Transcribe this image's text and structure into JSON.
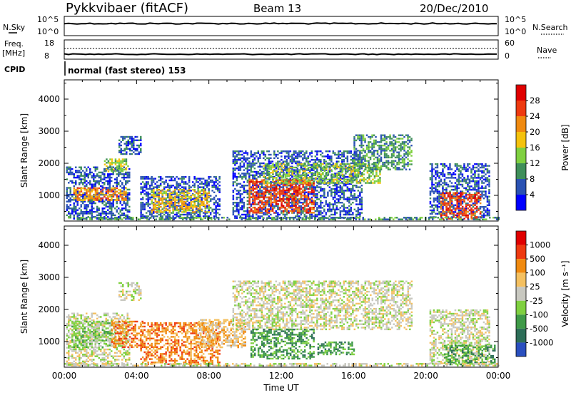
{
  "header": {
    "title": "Pykkvibaer (fitACF)",
    "beam": "Beam 13",
    "date": "20/Dec/2010"
  },
  "strips": {
    "nsky_label": "N.Sky",
    "nsky_ticks": [
      "10^5",
      "10^0"
    ],
    "nsearch_label": "N.Search",
    "nsearch_ticks": [
      "10^5",
      "10^0"
    ],
    "freq_label_1": "Freq.",
    "freq_label_2": "[MHz]",
    "freq_ticks": [
      "18",
      "8"
    ],
    "nave_label": "Nave",
    "nave_ticks": [
      "60",
      "0"
    ],
    "cpid_label": "CPID",
    "cpid_text": "normal (fast stereo) 153"
  },
  "chart_data": [
    {
      "type": "heatmap",
      "name": "power-panel",
      "ylabel": "Slant Range [km]",
      "xlabel": "",
      "x_ticks": [
        "00:00",
        "04:00",
        "08:00",
        "12:00",
        "16:00",
        "20:00",
        "00:00"
      ],
      "y_ticks": [
        1000,
        2000,
        3000,
        4000
      ],
      "ylim": [
        200,
        4600
      ],
      "xlim_hours": [
        0,
        24
      ],
      "colorbar": {
        "label": "Power [dB]",
        "ticks": [
          "28",
          "24",
          "20",
          "16",
          "12",
          "8",
          "4"
        ],
        "colors": [
          "#0000ff",
          "#2a52b3",
          "#3f8f5a",
          "#7fd040",
          "#f4c20d",
          "#f08a10",
          "#ee3a10",
          "#e00000"
        ]
      },
      "regions": [
        {
          "t0": 0.1,
          "t1": 3.6,
          "r0": 300,
          "r1": 1900,
          "c": 1
        },
        {
          "t0": 0.5,
          "t1": 3.4,
          "r0": 850,
          "r1": 1250,
          "c": 5
        },
        {
          "t0": 2.2,
          "t1": 3.5,
          "r0": 1750,
          "r1": 2150,
          "c": 3
        },
        {
          "t0": 3.0,
          "t1": 4.2,
          "r0": 2300,
          "r1": 2850,
          "c": 1
        },
        {
          "t0": 4.2,
          "t1": 8.6,
          "r0": 300,
          "r1": 1600,
          "c": 1
        },
        {
          "t0": 4.8,
          "t1": 8.0,
          "r0": 500,
          "r1": 1200,
          "c": 4
        },
        {
          "t0": 9.3,
          "t1": 16.5,
          "r0": 300,
          "r1": 2400,
          "c": 1
        },
        {
          "t0": 10.2,
          "t1": 13.8,
          "r0": 450,
          "r1": 1500,
          "c": 6
        },
        {
          "t0": 11.0,
          "t1": 17.5,
          "r0": 1400,
          "r1": 2000,
          "c": 3
        },
        {
          "t0": 16.0,
          "t1": 19.2,
          "r0": 1800,
          "r1": 2900,
          "c": 2
        },
        {
          "t0": 20.2,
          "t1": 23.5,
          "r0": 300,
          "r1": 2000,
          "c": 1
        },
        {
          "t0": 20.8,
          "t1": 23.0,
          "r0": 300,
          "r1": 1100,
          "c": 6
        },
        {
          "t0": 0.0,
          "t1": 24.0,
          "r0": 250,
          "r1": 330,
          "c": 2
        }
      ]
    },
    {
      "type": "heatmap",
      "name": "velocity-panel",
      "ylabel": "Slant Range [km]",
      "xlabel": "Time UT",
      "x_ticks": [
        "00:00",
        "04:00",
        "08:00",
        "12:00",
        "16:00",
        "20:00",
        "00:00"
      ],
      "y_ticks": [
        1000,
        2000,
        3000,
        4000
      ],
      "ylim": [
        200,
        4600
      ],
      "xlim_hours": [
        0,
        24
      ],
      "colorbar": {
        "label": "Velocity [m s⁻¹]",
        "ticks": [
          "1000",
          "500",
          "100",
          "25",
          "-25",
          "-100",
          "-500",
          "-1000"
        ],
        "colors": [
          "#2a4fbf",
          "#2d6e58",
          "#3f9a48",
          "#7fd040",
          "#c8c8c0",
          "#f4c060",
          "#f08a10",
          "#ee3a10",
          "#e00000"
        ]
      },
      "regions": [
        {
          "t0": 0.1,
          "t1": 3.6,
          "r0": 300,
          "r1": 1900,
          "c": 4
        },
        {
          "t0": 0.4,
          "t1": 2.6,
          "r0": 800,
          "r1": 1650,
          "c": 3
        },
        {
          "t0": 2.6,
          "t1": 4.3,
          "r0": 800,
          "r1": 1650,
          "c": 6
        },
        {
          "t0": 3.0,
          "t1": 4.2,
          "r0": 2300,
          "r1": 2850,
          "c": 4
        },
        {
          "t0": 4.2,
          "t1": 8.6,
          "r0": 300,
          "r1": 1600,
          "c": 6
        },
        {
          "t0": 7.4,
          "t1": 10.0,
          "r0": 800,
          "r1": 1700,
          "c": 5
        },
        {
          "t0": 9.3,
          "t1": 19.2,
          "r0": 1400,
          "r1": 2900,
          "c": 4
        },
        {
          "t0": 10.3,
          "t1": 13.8,
          "r0": 450,
          "r1": 1400,
          "c": 2
        },
        {
          "t0": 14.0,
          "t1": 16.0,
          "r0": 600,
          "r1": 1000,
          "c": 2
        },
        {
          "t0": 20.2,
          "t1": 23.5,
          "r0": 300,
          "r1": 2000,
          "c": 4
        },
        {
          "t0": 21.0,
          "t1": 23.8,
          "r0": 300,
          "r1": 900,
          "c": 2
        },
        {
          "t0": 0.0,
          "t1": 24.0,
          "r0": 250,
          "r1": 330,
          "c": 4
        }
      ]
    }
  ]
}
